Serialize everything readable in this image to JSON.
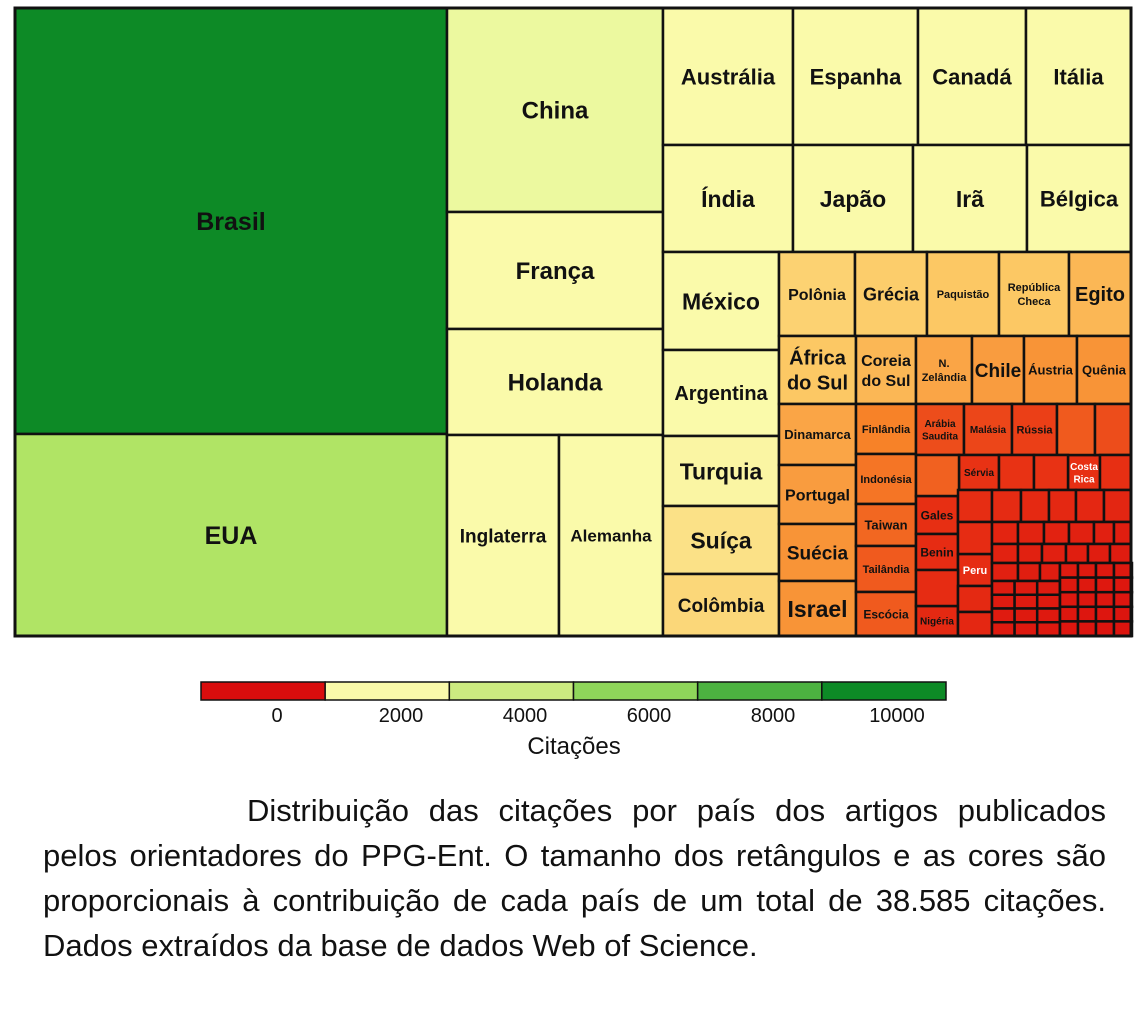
{
  "chart_data": {
    "type": "treemap",
    "total_citations": 38585,
    "legend": {
      "title": "Citações",
      "ticks": [
        "0",
        "2000",
        "4000",
        "6000",
        "8000",
        "10000"
      ],
      "colors": [
        "#d90d0d",
        "#fafaaa",
        "#cceb80",
        "#8fd65a",
        "#4cb240",
        "#0d8a26"
      ]
    },
    "countries": [
      {
        "name": "Brasil",
        "value": 10200
      },
      {
        "name": "EUA",
        "value": 4700
      },
      {
        "name": "China",
        "value": 1550
      },
      {
        "name": "França",
        "value": 850
      },
      {
        "name": "Holanda",
        "value": 800
      },
      {
        "name": "Inglaterra",
        "value": 820
      },
      {
        "name": "Alemanha",
        "value": 760
      },
      {
        "name": "Austrália",
        "value": 520
      },
      {
        "name": "Espanha",
        "value": 500
      },
      {
        "name": "Canadá",
        "value": 460
      },
      {
        "name": "Itália",
        "value": 450
      },
      {
        "name": "Índia",
        "value": 470
      },
      {
        "name": "Japão",
        "value": 460
      },
      {
        "name": "Irã",
        "value": 420
      },
      {
        "name": "Bélgica",
        "value": 390
      },
      {
        "name": "México",
        "value": 420
      },
      {
        "name": "Argentina",
        "value": 340
      },
      {
        "name": "Turquia",
        "value": 290
      },
      {
        "name": "Suíça",
        "value": 250
      },
      {
        "name": "Colômbia",
        "value": 230
      },
      {
        "name": "Polônia",
        "value": 220
      },
      {
        "name": "Grécia",
        "value": 210
      },
      {
        "name": "Paquistão",
        "value": 200
      },
      {
        "name": "República Checa",
        "value": 200
      },
      {
        "name": "Egito",
        "value": 180
      },
      {
        "name": "África do Sul",
        "value": 200
      },
      {
        "name": "Coreia do Sul",
        "value": 180
      },
      {
        "name": "N. Zelândia",
        "value": 160
      },
      {
        "name": "Chile",
        "value": 150
      },
      {
        "name": "Áustria",
        "value": 140
      },
      {
        "name": "Quênia",
        "value": 140
      },
      {
        "name": "Dinamarca",
        "value": 160
      },
      {
        "name": "Portugal",
        "value": 150
      },
      {
        "name": "Suécia",
        "value": 140
      },
      {
        "name": "Israel",
        "value": 140
      },
      {
        "name": "Finlândia",
        "value": 120
      },
      {
        "name": "Indonésia",
        "value": 110
      },
      {
        "name": "Taiwan",
        "value": 100
      },
      {
        "name": "Tailândia",
        "value": 90
      },
      {
        "name": "Escócia",
        "value": 90
      },
      {
        "name": "Arábia Saudita",
        "value": 80
      },
      {
        "name": "Malásia",
        "value": 75
      },
      {
        "name": "Rússia",
        "value": 70
      },
      {
        "name": "Sérvia",
        "value": 60
      },
      {
        "name": "Costa Rica",
        "value": 55
      },
      {
        "name": "Gales",
        "value": 55
      },
      {
        "name": "Benin",
        "value": 50
      },
      {
        "name": "Peru",
        "value": 50
      },
      {
        "name": "Nigéria",
        "value": 45
      }
    ]
  },
  "caption": "Distribuição das citações por país dos artigos publicados pelos orientadores do PPG-Ent. O tamanho dos retângulos e as cores são proporcionais à contribuição de cada país de um total de 38.585 citações. Dados extraídos da base de dados Web of Science."
}
